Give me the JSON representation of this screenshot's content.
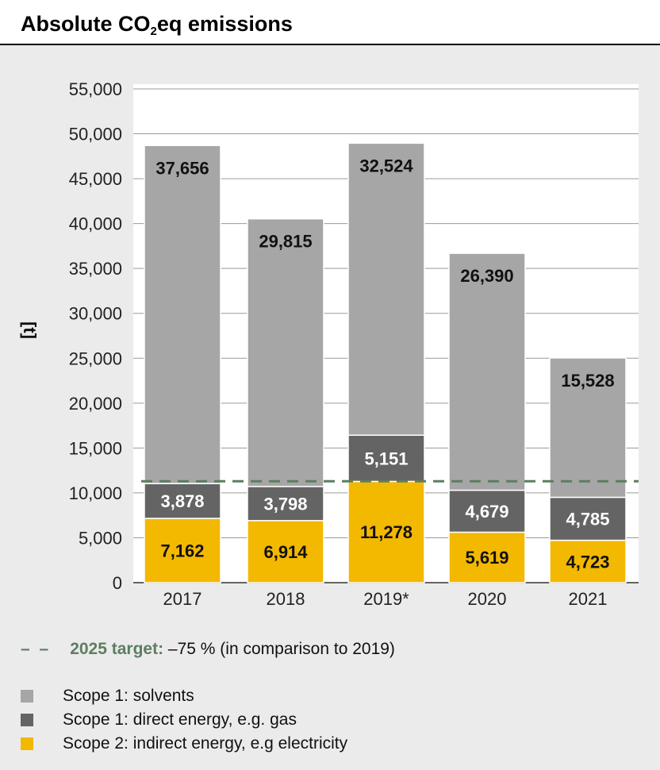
{
  "title_main": "Absolute CO",
  "title_sub": "2",
  "title_end": "eq emissions",
  "unit_label": "[t]",
  "colors": {
    "solvents": "#a6a6a6",
    "energy": "#646464",
    "electricity": "#f3b800",
    "target": "#5d7d62"
  },
  "legend": {
    "target_dash": "– –",
    "target_label": "2025 target:",
    "target_text": " –75 % (in comparison to 2019)",
    "items": [
      {
        "label": "Scope 1: solvents",
        "color": "#a6a6a6"
      },
      {
        "label": "Scope 1: direct energy, e.g. gas",
        "color": "#646464"
      },
      {
        "label": "Scope 2: indirect energy, e.g electricity",
        "color": "#f3b800"
      }
    ]
  },
  "chart_data": {
    "type": "bar",
    "stacked": true,
    "categories": [
      "2017",
      "2018",
      "2019*",
      "2020",
      "2021"
    ],
    "series": [
      {
        "name": "Scope 2: indirect energy, e.g electricity",
        "values": [
          7162,
          6914,
          11278,
          5619,
          4723
        ]
      },
      {
        "name": "Scope 1: direct energy, e.g. gas",
        "values": [
          3878,
          3798,
          5151,
          4679,
          4785
        ]
      },
      {
        "name": "Scope 1: solvents",
        "values": [
          37656,
          29815,
          32524,
          26390,
          15528
        ]
      }
    ],
    "ylim": [
      0,
      55000
    ],
    "yticks": [
      0,
      5000,
      10000,
      15000,
      20000,
      25000,
      30000,
      35000,
      40000,
      45000,
      50000,
      55000
    ],
    "ytick_labels": [
      "0",
      "5,000",
      "10,000",
      "15,000",
      "20,000",
      "25,000",
      "30,000",
      "35,000",
      "40,000",
      "45,000",
      "50,000",
      "55,000"
    ],
    "target_value": 11300,
    "grid": true
  }
}
